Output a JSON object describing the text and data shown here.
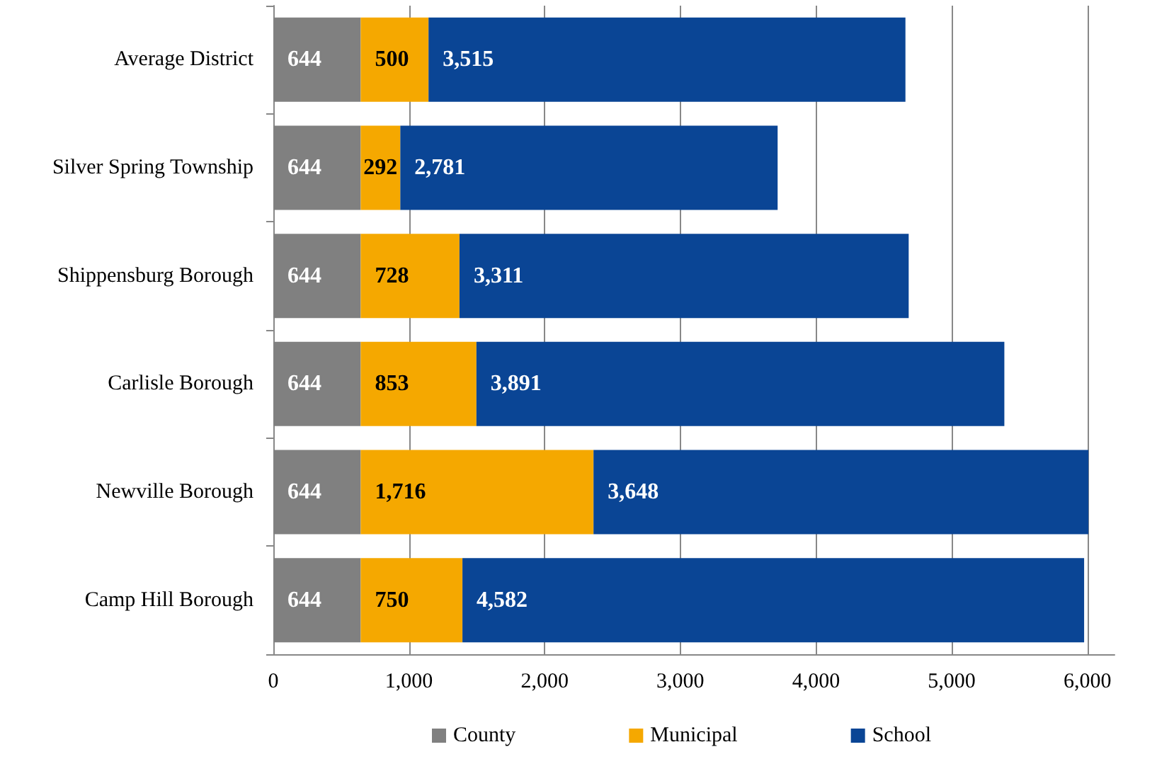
{
  "chart_data": {
    "type": "bar",
    "orientation": "horizontal",
    "stacked": true,
    "categories": [
      "Average District",
      "Silver Spring Township",
      "Shippensburg Borough",
      "Carlisle Borough",
      "Newville Borough",
      "Camp Hill Borough"
    ],
    "series": [
      {
        "name": "County",
        "color": "#808080",
        "values": [
          644,
          644,
          644,
          644,
          644,
          644
        ],
        "value_labels": [
          "644",
          "644",
          "644",
          "644",
          "644",
          "644"
        ]
      },
      {
        "name": "Municipal",
        "color": "#f5a800",
        "values": [
          500,
          292,
          728,
          853,
          1716,
          750
        ],
        "value_labels": [
          "500",
          "292",
          "728",
          "853",
          "1,716",
          "750"
        ]
      },
      {
        "name": "School",
        "color": "#0a4595",
        "values": [
          3515,
          2781,
          3311,
          3891,
          3648,
          4582
        ],
        "value_labels": [
          "3,515",
          "2,781",
          "3,311",
          "3,891",
          "3,648",
          "4,582"
        ]
      }
    ],
    "xlim": [
      0,
      6200
    ],
    "xticks": [
      {
        "value": 0,
        "label": "0"
      },
      {
        "value": 1000,
        "label": "1,000"
      },
      {
        "value": 2000,
        "label": "2,000"
      },
      {
        "value": 3000,
        "label": "3,000"
      },
      {
        "value": 4000,
        "label": "4,000"
      },
      {
        "value": 5000,
        "label": "5,000"
      },
      {
        "value": 6000,
        "label": "6,000"
      }
    ],
    "grid": "x",
    "legend": "bottom"
  }
}
